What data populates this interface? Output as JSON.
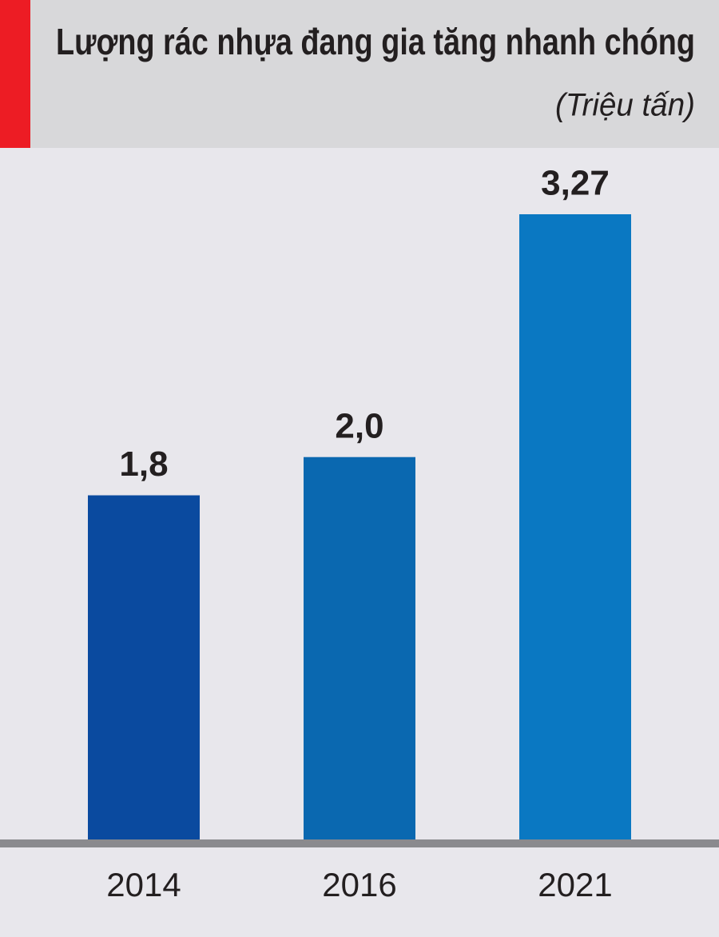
{
  "chart_data": {
    "type": "bar",
    "title": "Lượng rác nhựa đang gia tăng nhanh chóng",
    "subtitle": "(Triệu tấn)",
    "categories": [
      "2014",
      "2016",
      "2021"
    ],
    "values": [
      1.8,
      2.0,
      3.27
    ],
    "value_labels": [
      "1,8",
      "2,0",
      "3,27"
    ],
    "colors": [
      "#0a4a9f",
      "#0a68b0",
      "#0a78c2"
    ]
  }
}
